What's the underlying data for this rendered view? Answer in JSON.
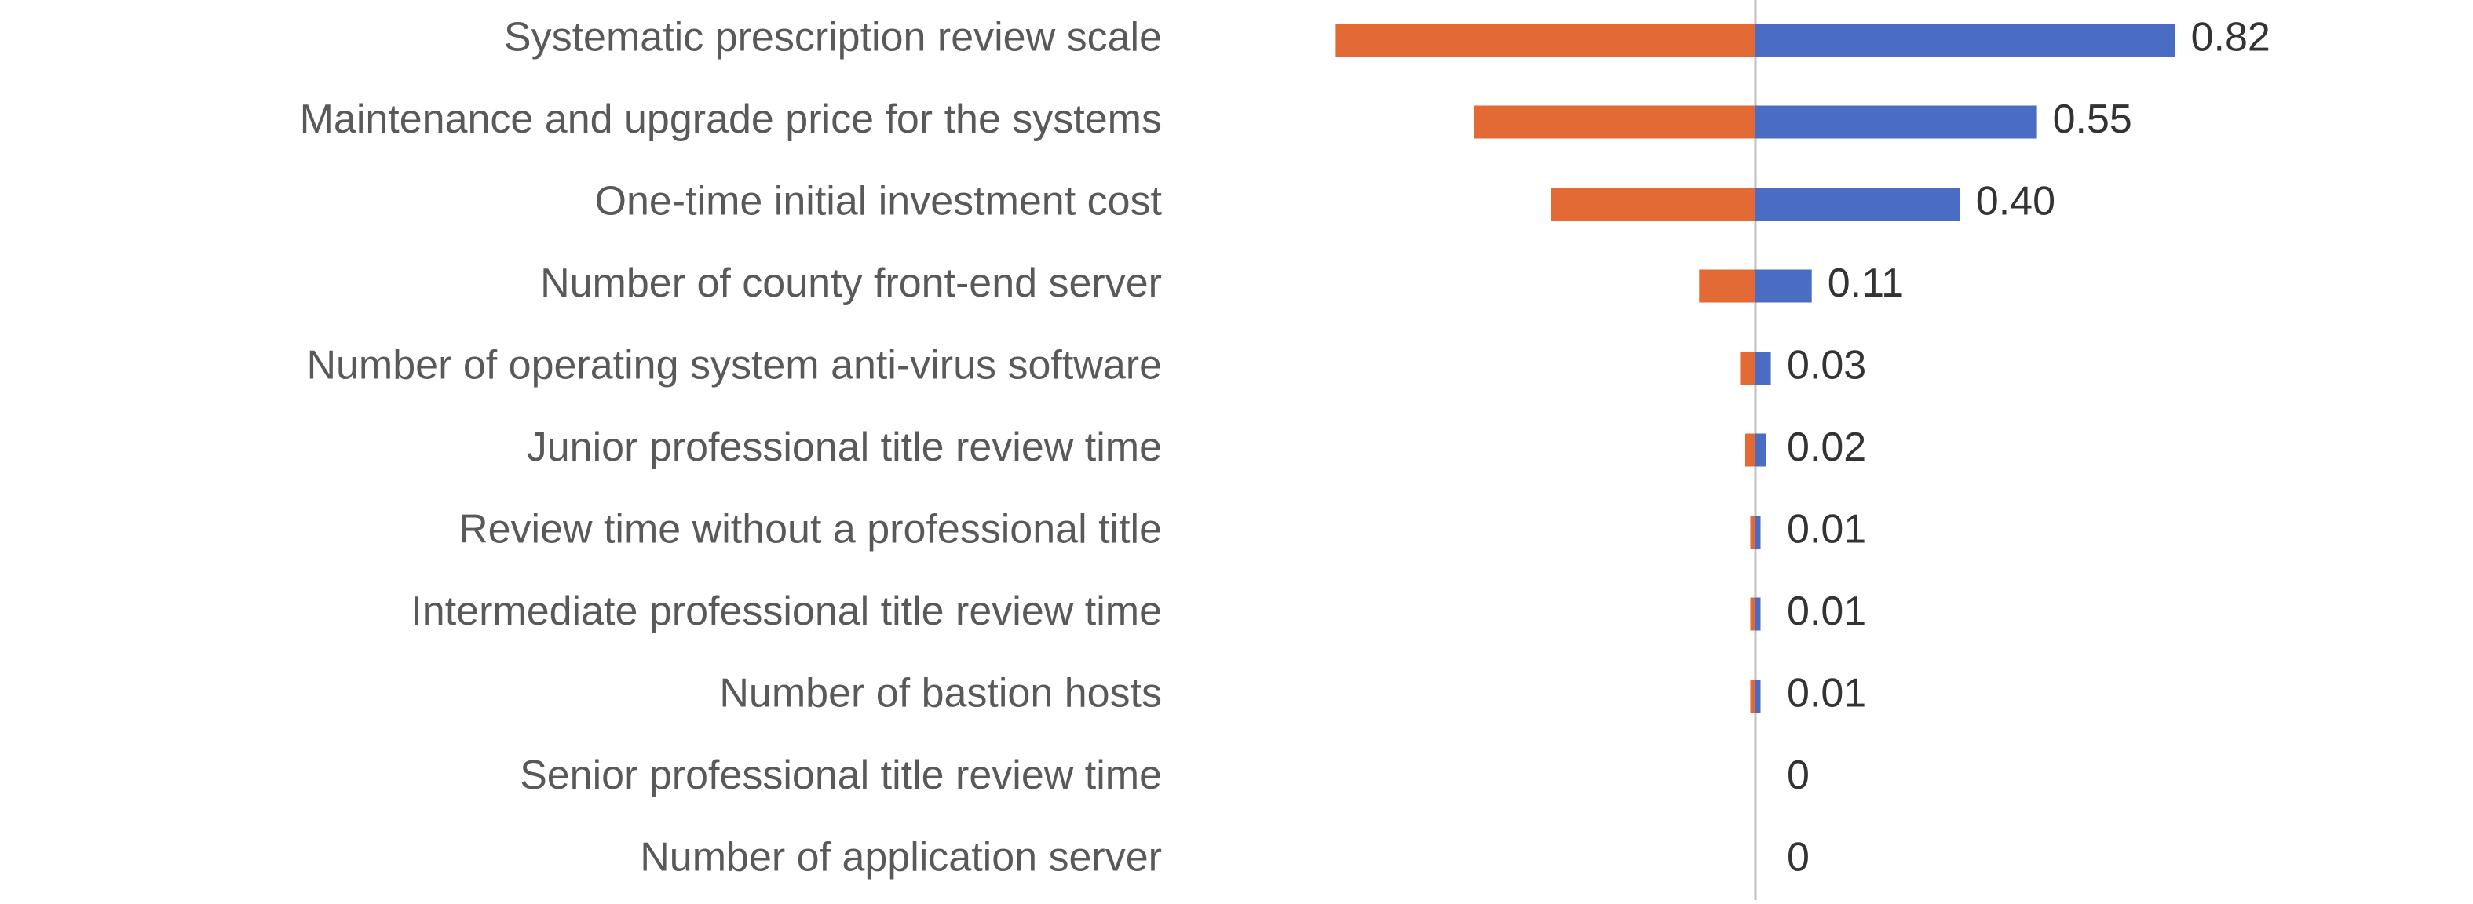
{
  "chart_data": {
    "type": "bar",
    "orientation": "horizontal",
    "layout": "tornado",
    "categories": [
      "Systematic prescription review scale",
      "Maintenance and upgrade price for the systems",
      "One-time initial investment cost",
      "Number of county front-end server",
      "Number of operating system anti-virus software",
      "Junior professional title review time",
      "Review time without a professional title",
      "Intermediate professional title review time",
      "Number of bastion hosts",
      "Senior professional title review time",
      "Number of application server"
    ],
    "values": [
      0.82,
      0.55,
      0.4,
      0.11,
      0.03,
      0.02,
      0.01,
      0.01,
      0.01,
      0,
      0
    ],
    "value_labels": [
      "0.82",
      "0.55",
      "0.40",
      "0.11",
      "0.03",
      "0.02",
      "0.01",
      "0.01",
      "0.01",
      "0",
      "0"
    ],
    "colors": {
      "negative_bar": "#E46A35",
      "positive_bar": "#4A6CC2",
      "axis": "#C0C0C0",
      "label_text": "#595959",
      "value_text": "#333333"
    },
    "grid": false,
    "legend": "none"
  }
}
